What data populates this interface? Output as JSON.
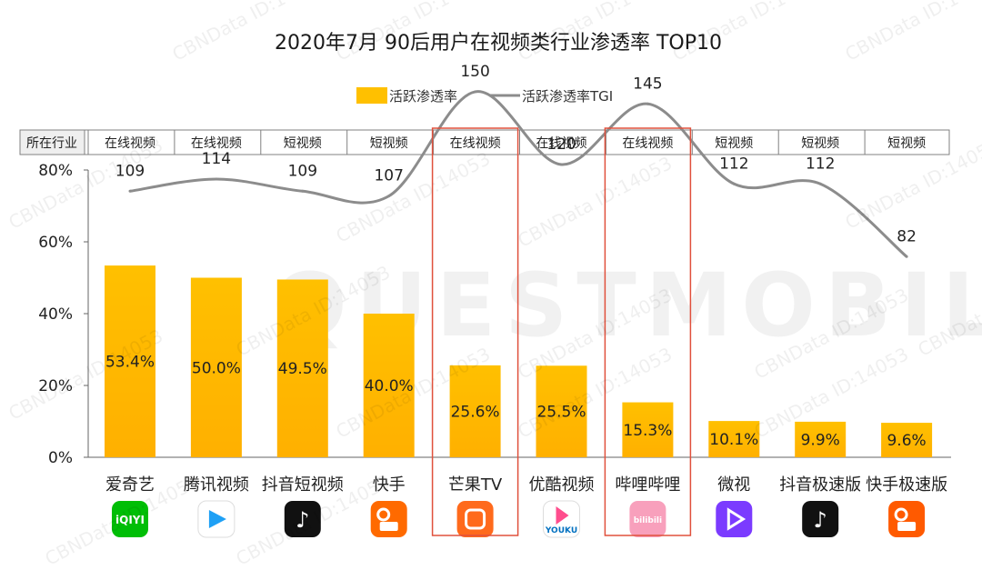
{
  "chart_data": {
    "type": "bar",
    "title": "2020年7月 90后用户在视频类行业渗透率 TOP10",
    "legend": {
      "placement": "top-center",
      "entries": [
        "活跃渗透率",
        "活跃渗透率TGI"
      ]
    },
    "industry_header": "所在行业",
    "categories": [
      "爱奇艺",
      "腾讯视频",
      "抖音短视频",
      "快手",
      "芒果TV",
      "优酷视频",
      "哔哩哔哩",
      "微视",
      "抖音极速版",
      "快手极速版"
    ],
    "industries": [
      "在线视频",
      "在线视频",
      "短视频",
      "短视频",
      "在线视频",
      "在线视频",
      "在线视频",
      "短视频",
      "短视频",
      "短视频"
    ],
    "series": [
      {
        "name": "活跃渗透率",
        "type": "bar",
        "values": [
          53.4,
          50.0,
          49.5,
          40.0,
          25.6,
          25.5,
          15.3,
          10.1,
          9.9,
          9.6
        ],
        "labels": [
          "53.4%",
          "50.0%",
          "49.5%",
          "40.0%",
          "25.6%",
          "25.5%",
          "15.3%",
          "10.1%",
          "9.9%",
          "9.6%"
        ],
        "color": "#FFC000"
      },
      {
        "name": "活跃渗透率TGI",
        "type": "line",
        "values": [
          109,
          114,
          109,
          107,
          150,
          120,
          145,
          112,
          112,
          82
        ],
        "color": "#8c8c8c"
      }
    ],
    "y_ticks": [
      "0%",
      "20%",
      "40%",
      "60%",
      "80%"
    ],
    "ylim": [
      0,
      80
    ],
    "highlighted_categories": [
      "芒果TV",
      "哔哩哔哩"
    ],
    "app_icons": [
      "iqiyi-icon",
      "tencent-video-icon",
      "douyin-icon",
      "kuaishou-icon",
      "mangotv-icon",
      "youku-icon",
      "bilibili-icon",
      "weishi-icon",
      "douyin-lite-icon",
      "kuaishou-lite-icon"
    ],
    "icon_texts": [
      "iQIYI",
      "",
      "",
      "",
      "",
      "YOUKU",
      "bilibili",
      "",
      "",
      ""
    ]
  },
  "watermark": {
    "text": "CBNData ID:14053",
    "brand": "QUESTMOBILE"
  }
}
